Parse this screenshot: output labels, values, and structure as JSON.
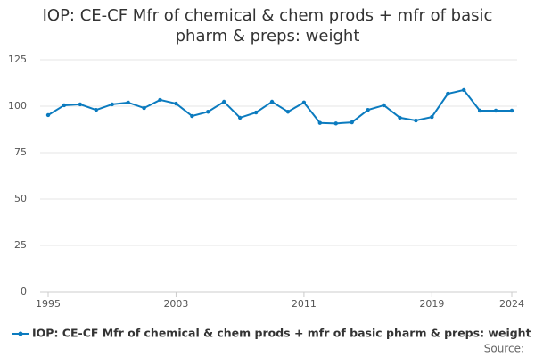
{
  "chart_data": {
    "type": "line",
    "title": "IOP: CE-CF Mfr of chemical & chem prods + mfr of basic pharm & preps: weight",
    "x": [
      1995,
      1996,
      1997,
      1998,
      1999,
      2000,
      2001,
      2002,
      2003,
      2004,
      2005,
      2006,
      2007,
      2008,
      2009,
      2010,
      2011,
      2012,
      2013,
      2014,
      2015,
      2016,
      2017,
      2018,
      2019,
      2020,
      2021,
      2022,
      2023,
      2024
    ],
    "series": [
      {
        "name": "IOP: CE-CF Mfr of chemical & chem prods + mfr of basic pharm & preps: weight",
        "color": "#0b7bbf",
        "values": [
          95.2,
          100.5,
          101,
          98,
          101,
          102,
          99,
          103.4,
          101.4,
          94.7,
          97,
          102.4,
          93.8,
          96.6,
          102.4,
          97,
          102,
          91,
          90.7,
          91.3,
          98,
          100.5,
          93.8,
          92.3,
          94.2,
          106.7,
          108.7,
          97.6,
          97.6,
          97.6
        ]
      }
    ],
    "xlim": [
      1995,
      2024
    ],
    "xticks": [
      1995,
      2003,
      2011,
      2019,
      2024
    ],
    "ylim": [
      0,
      125
    ],
    "yticks": [
      0,
      25,
      50,
      75,
      100,
      125
    ],
    "grid": true,
    "legend": "bottom",
    "source": "Source:"
  }
}
